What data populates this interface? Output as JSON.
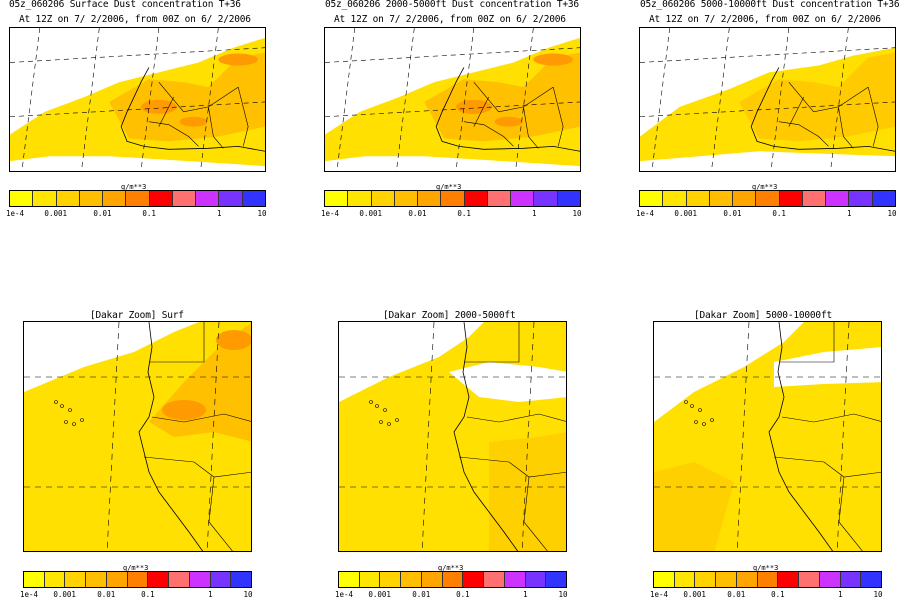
{
  "panels": [
    {
      "title": "05z_060206 Surface Dust concentration T+36",
      "subtitle": "At 12Z on 7/ 2/2006, from 00Z on 6/ 2/2006"
    },
    {
      "title": "05z_060206 2000-5000ft Dust concentration T+36",
      "subtitle": "At 12Z on 7/ 2/2006, from 00Z on 6/ 2/2006"
    },
    {
      "title": "05z_060206 5000-10000ft Dust concentration T+36",
      "subtitle": "At 12Z on 7/ 2/2006, from 00Z on 6/ 2/2006"
    },
    {
      "title": "[Dakar Zoom] Surf"
    },
    {
      "title": "[Dakar Zoom] 2000-5000ft"
    },
    {
      "title": "[Dakar Zoom] 5000-10000ft"
    }
  ],
  "colorbar": {
    "unit": "g/m**3",
    "ticks": [
      "1e-4",
      "0.001",
      "0.01",
      "0.1",
      "1",
      "10"
    ],
    "colors": [
      "#ffff00",
      "#ffe600",
      "#ffd200",
      "#ffbe00",
      "#ffa500",
      "#ff7f00",
      "#ff0000",
      "#ff7070",
      "#cc33ff",
      "#7733ff",
      "#3333ff"
    ]
  },
  "colors": {
    "dust_light": "#ffe000",
    "dust_mid": "#ffc000",
    "dust_heavy": "#ff9a00",
    "border": "#000000"
  }
}
